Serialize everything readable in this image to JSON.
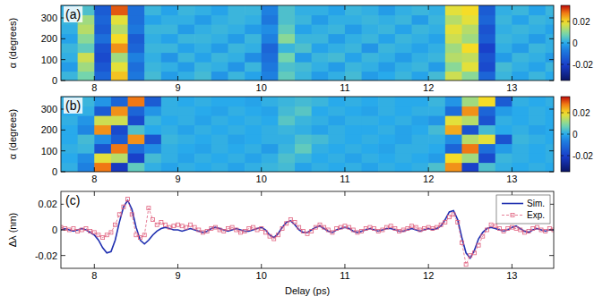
{
  "chart_data": [
    {
      "type": "heatmap",
      "title": "(a)",
      "ylabel": "α (degrees)",
      "x": [
        7.7,
        7.9,
        8.1,
        8.3,
        8.5,
        8.7,
        8.9,
        9.1,
        9.3,
        9.5,
        9.7,
        9.9,
        10.1,
        10.3,
        10.5,
        10.7,
        10.9,
        11.1,
        11.3,
        11.5,
        11.7,
        11.9,
        12.1,
        12.3,
        12.5,
        12.7,
        12.9,
        13.1,
        13.3,
        13.5
      ],
      "y": [
        22.5,
        67.5,
        112.5,
        157.5,
        202.5,
        247.5,
        292.5,
        337.5
      ],
      "values": [
        [
          0.002,
          0.008,
          -0.012,
          0.022,
          -0.008,
          0.003,
          -0.002,
          0.001,
          0.003,
          -0.003,
          0.002,
          -0.001,
          -0.006,
          0.006,
          0.002,
          -0.002,
          0.001,
          0.003,
          -0.002,
          0.0,
          0.002,
          -0.001,
          0.003,
          0.016,
          0.01,
          -0.012,
          0.002,
          -0.001,
          0.002,
          0.0
        ],
        [
          -0.002,
          0.012,
          -0.015,
          0.018,
          -0.01,
          0.002,
          0.001,
          -0.002,
          0.002,
          0.001,
          -0.003,
          0.002,
          -0.008,
          0.004,
          0.003,
          0.001,
          -0.002,
          0.002,
          0.001,
          -0.002,
          0.001,
          0.002,
          -0.002,
          0.01,
          0.018,
          -0.018,
          0.003,
          0.001,
          -0.001,
          0.002
        ],
        [
          0.001,
          0.016,
          -0.018,
          0.012,
          -0.006,
          0.001,
          -0.003,
          0.002,
          -0.001,
          0.002,
          0.001,
          -0.004,
          -0.01,
          0.008,
          -0.002,
          0.002,
          0.003,
          -0.001,
          0.002,
          0.001,
          -0.002,
          0.001,
          0.002,
          0.014,
          0.015,
          -0.016,
          -0.002,
          0.002,
          0.001,
          -0.002
        ],
        [
          0.002,
          0.006,
          -0.016,
          0.026,
          -0.012,
          0.002,
          0.002,
          -0.001,
          0.001,
          -0.002,
          0.002,
          0.001,
          -0.012,
          0.002,
          0.004,
          -0.001,
          0.001,
          0.002,
          -0.003,
          0.002,
          0.001,
          -0.001,
          0.001,
          0.012,
          0.02,
          -0.02,
          0.001,
          -0.002,
          0.002,
          0.001
        ],
        [
          -0.001,
          0.01,
          -0.01,
          0.02,
          -0.014,
          0.001,
          -0.001,
          0.002,
          0.002,
          0.001,
          -0.002,
          0.002,
          -0.006,
          0.01,
          0.002,
          0.002,
          -0.002,
          0.001,
          0.002,
          -0.001,
          0.002,
          0.001,
          -0.001,
          0.016,
          0.012,
          -0.014,
          0.002,
          0.001,
          -0.002,
          0.001
        ],
        [
          0.001,
          0.014,
          -0.014,
          0.014,
          -0.008,
          0.002,
          0.002,
          -0.002,
          0.001,
          0.002,
          0.001,
          -0.002,
          -0.004,
          0.006,
          -0.001,
          0.001,
          0.002,
          -0.002,
          0.001,
          0.002,
          -0.001,
          0.002,
          0.001,
          0.018,
          0.014,
          -0.016,
          0.001,
          0.002,
          0.001,
          -0.001
        ],
        [
          0.002,
          0.012,
          -0.012,
          0.018,
          -0.01,
          -0.001,
          0.001,
          0.001,
          -0.002,
          0.001,
          0.002,
          0.001,
          -0.008,
          0.004,
          0.002,
          -0.002,
          0.001,
          0.001,
          0.002,
          0.001,
          0.002,
          -0.002,
          0.002,
          0.014,
          0.018,
          -0.012,
          0.002,
          -0.001,
          0.002,
          0.001
        ],
        [
          0.001,
          0.004,
          -0.014,
          0.03,
          -0.01,
          0.002,
          -0.001,
          0.002,
          0.001,
          -0.001,
          0.002,
          0.002,
          -0.006,
          0.004,
          0.001,
          0.001,
          -0.001,
          0.002,
          0.001,
          -0.002,
          0.001,
          0.002,
          0.001,
          0.018,
          0.02,
          -0.014,
          0.001,
          0.002,
          -0.001,
          0.002
        ]
      ],
      "xlim": [
        7.6,
        13.5
      ],
      "ylim": [
        0,
        360
      ],
      "xticks": [
        8,
        9,
        10,
        11,
        12,
        13
      ],
      "yticks": [
        0,
        100,
        200,
        300
      ],
      "clim": [
        -0.035,
        0.035
      ],
      "cticks": [
        -0.02,
        0,
        0.02
      ]
    },
    {
      "type": "heatmap",
      "title": "(b)",
      "ylabel": "α (degrees)",
      "x": [
        7.7,
        7.9,
        8.1,
        8.3,
        8.5,
        8.7,
        8.9,
        9.1,
        9.3,
        9.5,
        9.7,
        9.9,
        10.1,
        10.3,
        10.5,
        10.7,
        10.9,
        11.1,
        11.3,
        11.5,
        11.7,
        11.9,
        12.1,
        12.3,
        12.5,
        12.7,
        12.9,
        13.1,
        13.3,
        13.5
      ],
      "y": [
        22.5,
        67.5,
        112.5,
        157.5,
        202.5,
        247.5,
        292.5,
        337.5
      ],
      "values": [
        [
          0.001,
          -0.006,
          0.028,
          -0.022,
          0.006,
          0.001,
          -0.001,
          0.001,
          0.0,
          0.001,
          -0.001,
          0.001,
          0.002,
          0.003,
          -0.001,
          0.001,
          0.0,
          0.001,
          -0.001,
          0.001,
          0.0,
          0.001,
          0.004,
          0.026,
          -0.02,
          0.004,
          0.001,
          0.0,
          0.001,
          0.0
        ],
        [
          0.0,
          -0.004,
          0.018,
          0.014,
          -0.02,
          0.003,
          0.001,
          -0.001,
          0.001,
          0.0,
          0.001,
          -0.001,
          0.001,
          0.004,
          0.002,
          0.0,
          0.001,
          -0.001,
          0.001,
          0.0,
          0.001,
          0.0,
          -0.002,
          0.02,
          0.012,
          -0.018,
          0.002,
          0.001,
          0.0,
          0.001
        ],
        [
          0.001,
          0.002,
          -0.016,
          0.028,
          -0.01,
          -0.004,
          0.001,
          0.0,
          -0.001,
          0.001,
          0.0,
          0.001,
          -0.002,
          0.002,
          0.006,
          0.001,
          0.0,
          0.001,
          0.0,
          -0.001,
          0.001,
          0.001,
          0.0,
          -0.012,
          0.028,
          -0.01,
          -0.002,
          0.001,
          0.0,
          0.001
        ],
        [
          0.0,
          0.003,
          -0.004,
          -0.014,
          0.026,
          -0.016,
          0.002,
          0.001,
          0.0,
          0.001,
          -0.001,
          0.0,
          0.001,
          0.001,
          0.004,
          0.003,
          0.001,
          0.0,
          0.001,
          0.0,
          -0.001,
          0.001,
          0.001,
          -0.004,
          0.014,
          0.018,
          -0.016,
          0.002,
          0.001,
          0.0
        ],
        [
          0.0,
          -0.005,
          0.026,
          -0.018,
          0.004,
          0.0,
          0.001,
          -0.001,
          0.001,
          0.0,
          0.001,
          0.0,
          0.001,
          0.002,
          0.001,
          -0.001,
          0.001,
          0.0,
          0.0,
          0.001,
          -0.001,
          0.0,
          0.003,
          0.024,
          -0.016,
          0.003,
          0.0,
          0.001,
          -0.001,
          0.0
        ],
        [
          0.001,
          -0.003,
          0.016,
          0.016,
          -0.018,
          0.002,
          0.0,
          0.001,
          -0.001,
          0.001,
          0.0,
          0.001,
          0.0,
          0.005,
          0.002,
          0.001,
          -0.001,
          0.001,
          0.001,
          0.0,
          0.001,
          -0.001,
          -0.003,
          0.018,
          0.014,
          -0.016,
          0.001,
          0.0,
          0.001,
          0.0
        ],
        [
          0.0,
          0.001,
          -0.014,
          0.026,
          -0.012,
          -0.003,
          0.001,
          0.001,
          0.0,
          -0.001,
          0.001,
          0.0,
          -0.001,
          0.003,
          0.005,
          0.0,
          0.001,
          0.0,
          -0.001,
          0.001,
          0.0,
          0.001,
          0.001,
          -0.01,
          0.026,
          -0.012,
          -0.002,
          0.0,
          0.001,
          0.0
        ],
        [
          0.001,
          0.002,
          -0.003,
          -0.012,
          0.028,
          -0.014,
          0.001,
          0.0,
          0.001,
          0.0,
          0.0,
          -0.001,
          0.001,
          0.002,
          0.003,
          0.002,
          0.0,
          0.001,
          0.0,
          0.001,
          0.0,
          0.0,
          0.002,
          -0.003,
          0.012,
          0.02,
          -0.014,
          0.001,
          0.0,
          0.001
        ]
      ],
      "xlim": [
        7.6,
        13.5
      ],
      "ylim": [
        0,
        360
      ],
      "xticks": [
        8,
        9,
        10,
        11,
        12,
        13
      ],
      "yticks": [
        0,
        100,
        200,
        300
      ],
      "clim": [
        -0.035,
        0.035
      ],
      "cticks": [
        -0.02,
        0,
        0.02
      ]
    },
    {
      "type": "line",
      "title": "(c)",
      "xlabel": "Delay (ps)",
      "ylabel": "Δλ (nm)",
      "x": [
        7.6,
        7.65,
        7.7,
        7.75,
        7.8,
        7.85,
        7.9,
        7.95,
        8.0,
        8.05,
        8.1,
        8.15,
        8.2,
        8.25,
        8.3,
        8.35,
        8.4,
        8.45,
        8.5,
        8.55,
        8.6,
        8.65,
        8.7,
        8.75,
        8.8,
        8.85,
        8.9,
        8.95,
        9.0,
        9.05,
        9.1,
        9.15,
        9.2,
        9.25,
        9.3,
        9.35,
        9.4,
        9.45,
        9.5,
        9.55,
        9.6,
        9.65,
        9.7,
        9.75,
        9.8,
        9.85,
        9.9,
        9.95,
        10.0,
        10.05,
        10.1,
        10.15,
        10.2,
        10.25,
        10.3,
        10.35,
        10.4,
        10.45,
        10.5,
        10.55,
        10.6,
        10.65,
        10.7,
        10.75,
        10.8,
        10.85,
        10.9,
        10.95,
        11.0,
        11.05,
        11.1,
        11.15,
        11.2,
        11.25,
        11.3,
        11.35,
        11.4,
        11.45,
        11.5,
        11.55,
        11.6,
        11.65,
        11.7,
        11.75,
        11.8,
        11.85,
        11.9,
        11.95,
        12.0,
        12.05,
        12.1,
        12.15,
        12.2,
        12.25,
        12.3,
        12.35,
        12.4,
        12.45,
        12.5,
        12.55,
        12.6,
        12.65,
        12.7,
        12.75,
        12.8,
        12.85,
        12.9,
        12.95,
        13.0,
        13.05,
        13.1,
        13.15,
        13.2,
        13.25,
        13.3,
        13.35,
        13.4,
        13.45,
        13.5
      ],
      "series": [
        {
          "name": "Sim.",
          "color": "#1f2fb0",
          "line_style": "solid",
          "values": [
            0.0,
            0.001,
            0.0,
            -0.001,
            0.0,
            0.001,
            0.0,
            -0.002,
            -0.004,
            -0.008,
            -0.014,
            -0.018,
            -0.017,
            -0.008,
            0.006,
            0.018,
            0.023,
            0.016,
            0.002,
            -0.008,
            -0.011,
            -0.008,
            -0.004,
            -0.001,
            0.001,
            0.002,
            0.001,
            0.0,
            0.0,
            -0.001,
            0.0,
            0.001,
            0.0,
            -0.001,
            -0.002,
            -0.001,
            0.001,
            0.002,
            0.001,
            0.0,
            -0.001,
            0.0,
            0.001,
            0.0,
            -0.001,
            -0.001,
            0.0,
            0.001,
            0.002,
            0.0,
            -0.004,
            -0.006,
            -0.003,
            0.002,
            0.006,
            0.007,
            0.004,
            0.0,
            -0.002,
            -0.002,
            0.0,
            0.002,
            0.003,
            0.001,
            -0.001,
            -0.002,
            0.0,
            0.001,
            0.002,
            0.001,
            -0.001,
            -0.002,
            -0.001,
            0.0,
            0.001,
            0.0,
            -0.001,
            0.0,
            0.001,
            0.001,
            0.0,
            -0.001,
            -0.001,
            0.0,
            0.001,
            0.0,
            -0.001,
            0.0,
            0.001,
            0.0,
            0.001,
            0.003,
            0.008,
            0.014,
            0.015,
            0.008,
            -0.006,
            -0.018,
            -0.022,
            -0.016,
            -0.007,
            -0.002,
            0.001,
            0.002,
            0.001,
            0.0,
            -0.001,
            0.0,
            0.002,
            0.003,
            0.001,
            -0.001,
            -0.002,
            0.0,
            0.001,
            0.0,
            -0.001,
            0.0,
            0.0
          ]
        },
        {
          "name": "Exp.",
          "color": "#e0607e",
          "line_style": "dashed",
          "marker": "square",
          "values": [
            0.002,
            0.001,
            0.0,
            0.001,
            -0.001,
            0.0,
            0.001,
            -0.001,
            -0.002,
            -0.004,
            -0.006,
            -0.004,
            -0.002,
            0.004,
            0.012,
            0.018,
            0.024,
            0.012,
            -0.004,
            -0.006,
            -0.004,
            0.017,
            0.008,
            0.004,
            0.006,
            0.004,
            0.002,
            0.003,
            0.004,
            0.003,
            0.002,
            0.004,
            0.002,
            0.0,
            -0.002,
            -0.001,
            0.001,
            0.002,
            0.0,
            -0.001,
            0.001,
            0.002,
            0.0,
            -0.002,
            -0.001,
            0.001,
            0.002,
            0.0,
            0.001,
            -0.002,
            -0.005,
            -0.007,
            -0.004,
            0.001,
            0.005,
            0.008,
            0.006,
            0.002,
            -0.001,
            -0.003,
            -0.001,
            0.002,
            0.004,
            0.002,
            0.0,
            -0.002,
            0.001,
            0.002,
            0.003,
            0.002,
            0.0,
            -0.002,
            -0.001,
            0.001,
            0.002,
            0.001,
            -0.001,
            0.0,
            0.002,
            0.003,
            0.001,
            -0.001,
            0.0,
            0.001,
            0.003,
            0.002,
            0.0,
            0.001,
            0.002,
            0.001,
            0.002,
            0.004,
            0.006,
            0.01,
            0.012,
            0.006,
            -0.01,
            -0.027,
            -0.02,
            -0.018,
            -0.012,
            -0.005,
            0.0,
            0.004,
            0.003,
            0.001,
            -0.001,
            0.001,
            0.002,
            0.001,
            0.0,
            -0.002,
            -0.001,
            0.001,
            0.002,
            0.0,
            -0.001,
            0.001,
            0.0
          ]
        }
      ],
      "xlim": [
        7.6,
        13.5
      ],
      "ylim": [
        -0.03,
        0.03
      ],
      "xticks": [
        8,
        9,
        10,
        11,
        12,
        13
      ],
      "yticks": [
        -0.02,
        0,
        0.02
      ],
      "legend": "upper right"
    }
  ]
}
